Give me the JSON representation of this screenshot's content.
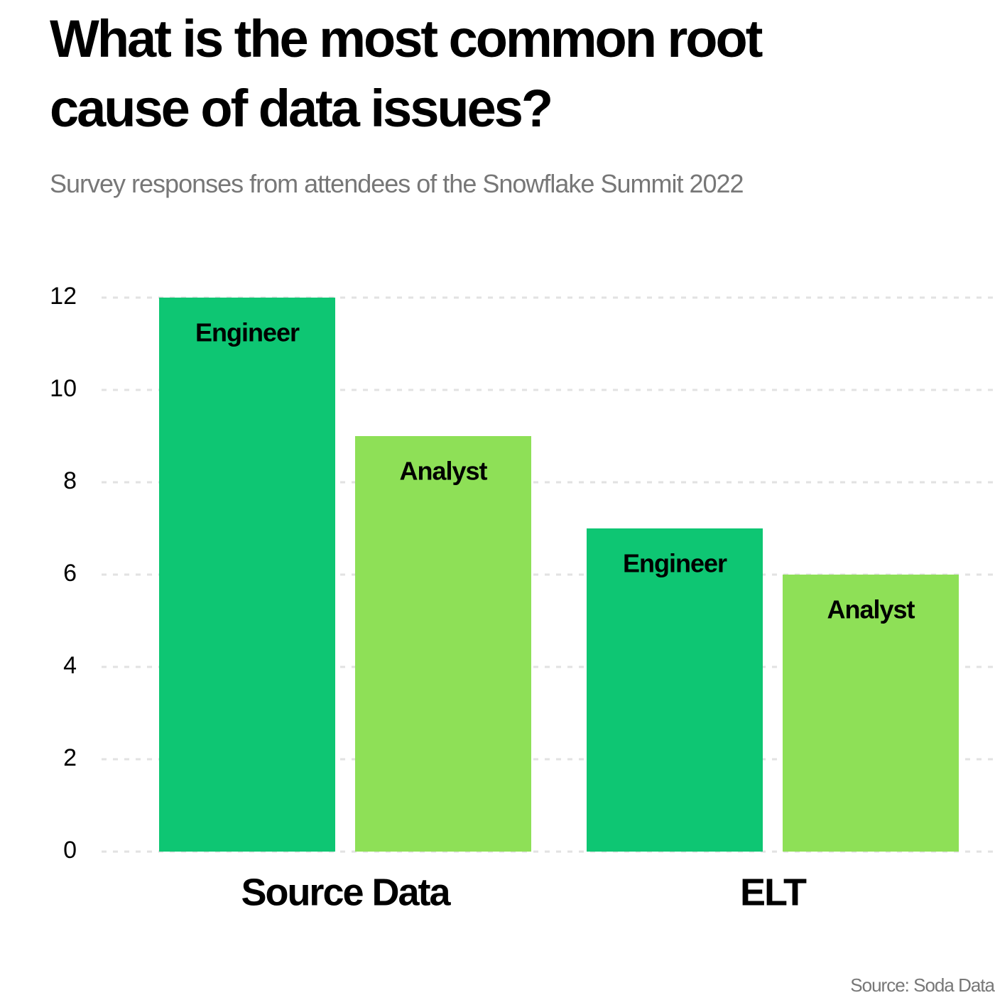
{
  "chart_data": {
    "type": "bar",
    "title": "What is the most common root cause of data issues?",
    "subtitle": "Survey responses from attendees of the Snowflake Summit 2022",
    "source": "Source: Soda Data",
    "categories": [
      "Source Data",
      "ELT"
    ],
    "series": [
      {
        "name": "Engineer",
        "color": "#0ec673",
        "values": [
          12,
          7
        ]
      },
      {
        "name": "Analyst",
        "color": "#8ee057",
        "values": [
          9,
          6
        ]
      }
    ],
    "ylim": [
      0,
      12
    ],
    "yticks": [
      0,
      2,
      4,
      6,
      8,
      10,
      12
    ],
    "grid": true
  }
}
